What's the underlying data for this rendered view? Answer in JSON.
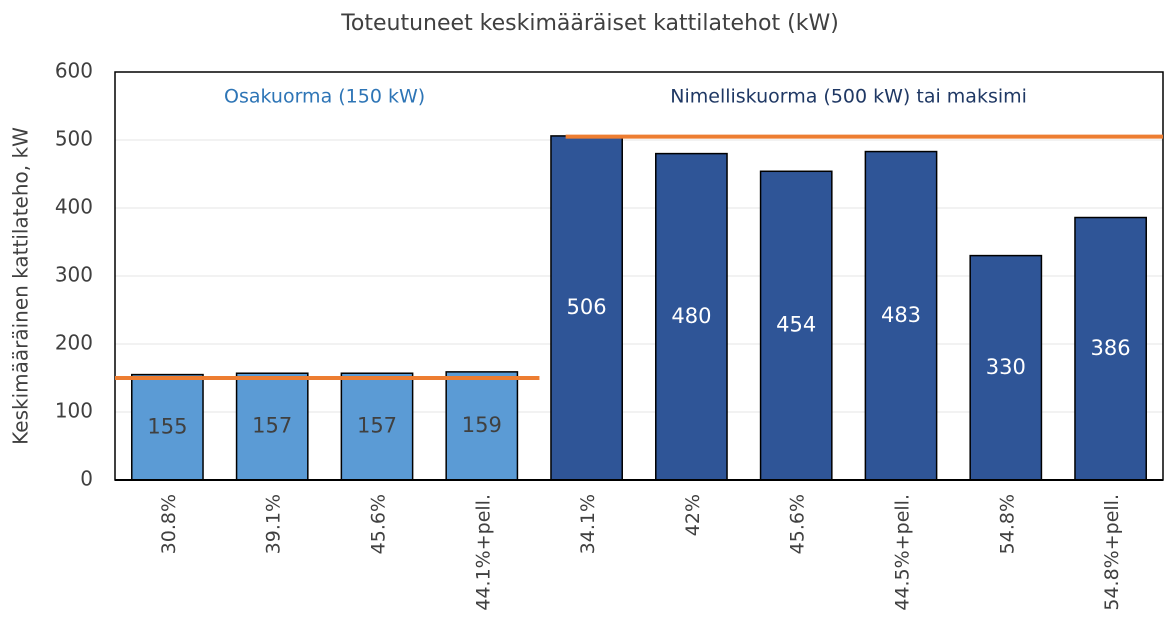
{
  "chart_data": {
    "type": "bar",
    "title": "Toteutuneet keskimääräiset kattilatehot (kW)",
    "y_label": "Keskimääräinen kattilateho, kW",
    "categories": [
      "30.8%",
      "39.1%",
      "45.6%",
      "44.1%+pell.",
      "34.1%",
      "42%",
      "45.6%",
      "44.5%+pell.",
      "54.8%",
      "54.8%+pell."
    ],
    "groups": [
      {
        "name": "Osakuorma (150 kW)",
        "color": "#5b9bd5",
        "name_color": "#2e75b6",
        "value_label_color": "#404040",
        "reference": 150,
        "values": [
          155,
          157,
          157,
          159
        ]
      },
      {
        "name": "Nimelliskuorma (500 kW) tai maksimi",
        "color": "#2f5597",
        "name_color": "#1f3864",
        "value_label_color": "#ffffff",
        "reference": 505,
        "values": [
          506,
          480,
          454,
          483,
          330,
          386
        ]
      }
    ],
    "reference_color": "#ed7d31",
    "ylim": [
      0,
      600
    ],
    "yticks": [
      0,
      100,
      200,
      300,
      400,
      500,
      600
    ],
    "grid": true
  }
}
